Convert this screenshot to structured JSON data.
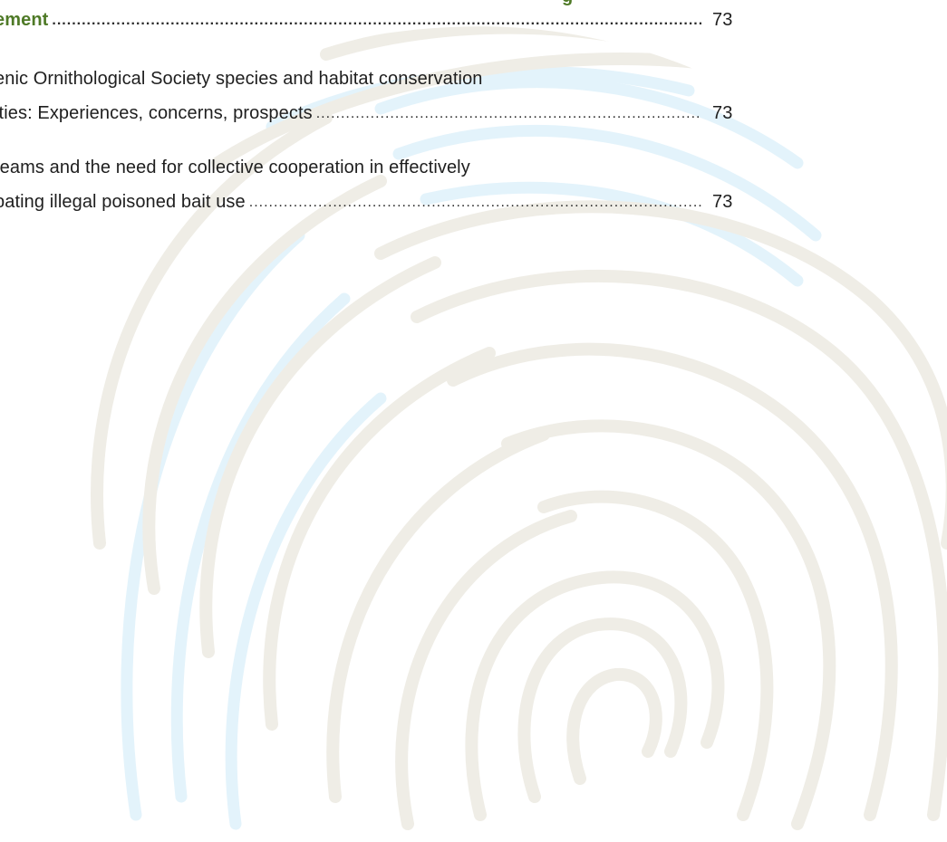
{
  "section": {
    "heading_top_fragment": "g",
    "heading_text": "ement",
    "heading_page": "73"
  },
  "entries": [
    {
      "line1": "enic Ornithological Society species and habitat conservation",
      "line2": "ities: Experiences, concerns, prospects",
      "page": "73"
    },
    {
      "line1": "teams and the need for collective cooperation in effectively",
      "line2": "pating illegal poisoned bait use",
      "page": "73"
    }
  ],
  "leader_dots": "........................................................................................................................................................................................................................",
  "colors": {
    "heading_green": "#4f7a27",
    "text": "#1e1e1e",
    "watermark_grey": "#efede6",
    "watermark_blue": "#e3f3fb"
  },
  "watermark_icon": "fingerprint-icon"
}
